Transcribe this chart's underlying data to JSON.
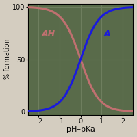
{
  "title": "",
  "xlabel": "pH–pKa",
  "ylabel": "% formation",
  "xlim": [
    -2.5,
    2.5
  ],
  "ylim": [
    -3,
    103
  ],
  "xticks": [
    -2,
    -1,
    0,
    1,
    2
  ],
  "yticks": [
    0,
    50,
    100
  ],
  "background_color": "#596b4a",
  "fig_background": "#d4cdc0",
  "line_AH_color": "#c07070",
  "line_A_color": "#1a1add",
  "label_AH": "AH",
  "label_A": "A⁻",
  "line_width": 2.2,
  "grid_color": "#6e7e5e",
  "grid_linewidth": 0.8,
  "tick_labelsize": 7,
  "xlabel_fontsize": 8,
  "ylabel_fontsize": 7,
  "label_fontsize": 9
}
